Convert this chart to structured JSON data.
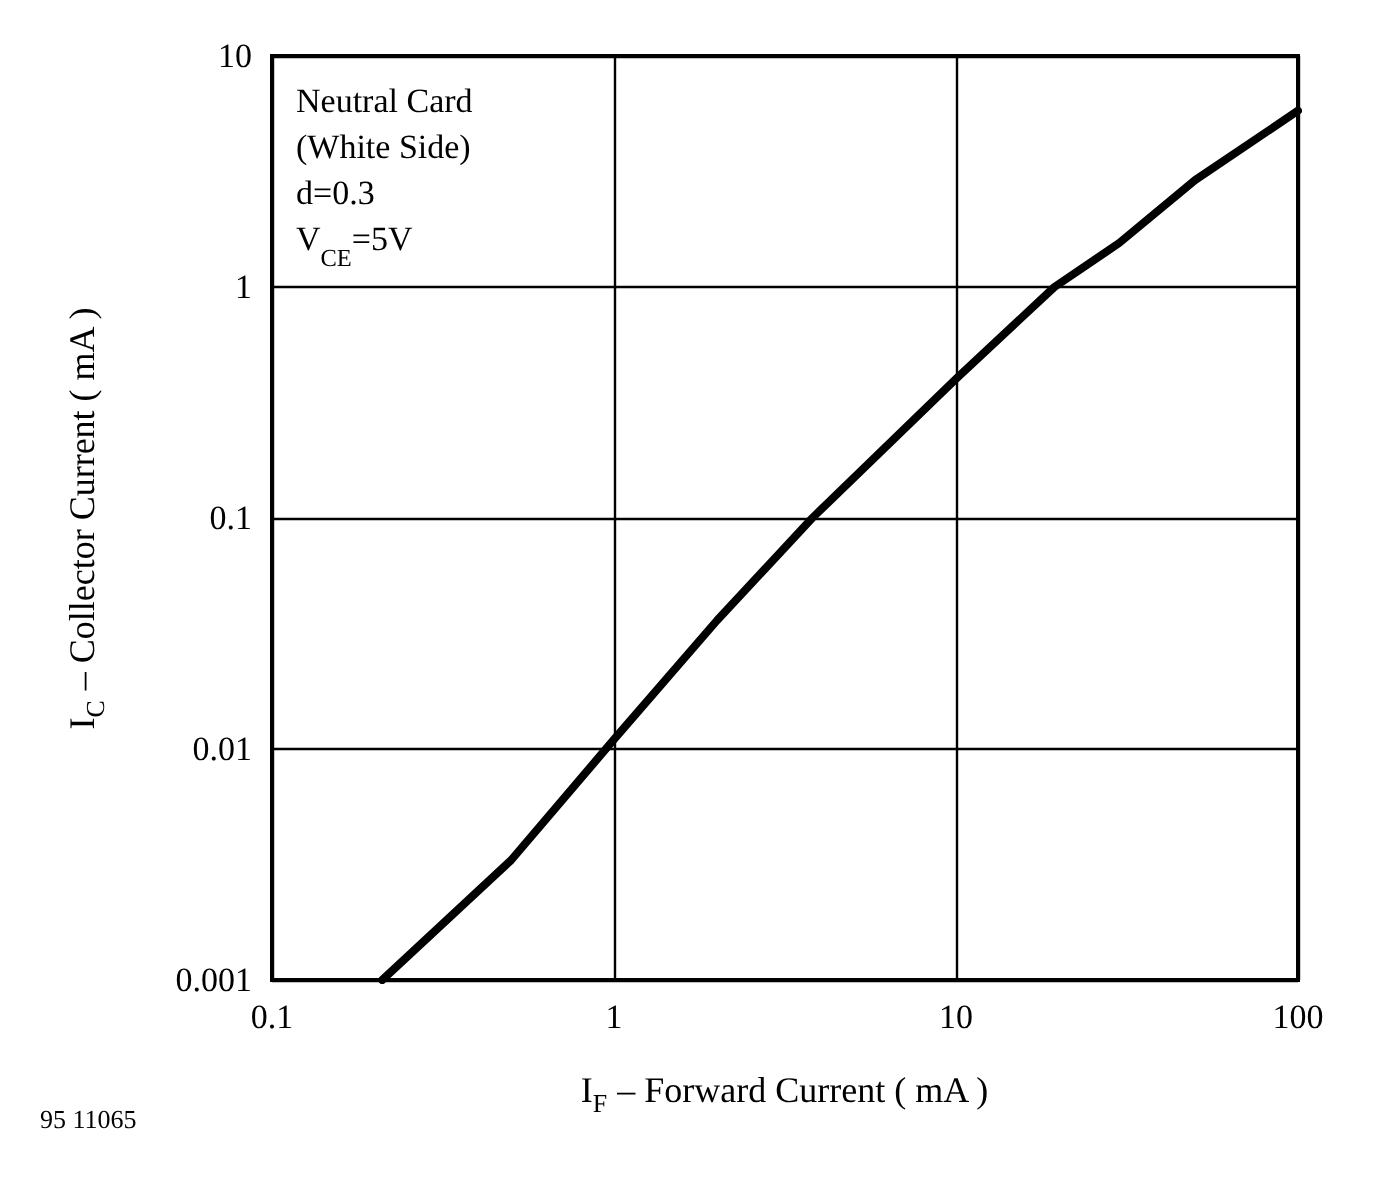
{
  "chart_data": {
    "type": "line",
    "xlabel": "I$_{F}$ – Forward Current ( mA )",
    "ylabel": "I$_{C}$ – Collector Current ( mA )",
    "annotations": [
      "Neutral Card\n(White Side)\nd=0.3\nV$_{CE}$=5V",
      "95 11065"
    ],
    "log": "xy",
    "xlim": [
      0.1,
      100
    ],
    "xticks": [
      0.1,
      1,
      10,
      100
    ],
    "ylim": [
      0.001,
      10
    ],
    "yticks": [
      0.001,
      0.01,
      0.1,
      1,
      10
    ],
    "grid": true,
    "marker": "none",
    "line_style": "solid",
    "series": [
      {
        "color": "#000000",
        "x": [
          0.21,
          0.5,
          1,
          2,
          3.8,
          10,
          19.4,
          30,
          50,
          100
        ],
        "values": [
          0.001,
          0.0033,
          0.011,
          0.036,
          0.1,
          0.4,
          1,
          1.55,
          2.9,
          5.8
        ]
      }
    ]
  }
}
